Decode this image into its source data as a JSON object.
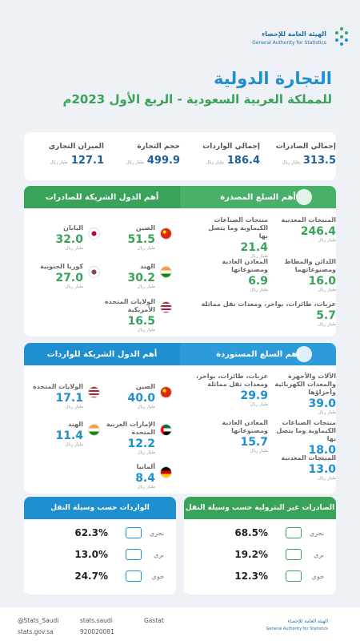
{
  "header": {
    "org_ar": "الهيئة العامة للإحصاء",
    "org_en": "General Authority for Statistics"
  },
  "title": "التجارة الدولية",
  "subtitle": "للمملكة العربية السعودية - الربع الأول 2023م",
  "unit": "مليار ريال",
  "summary": [
    {
      "label": "إجمالي الصادرات",
      "value": "313.5"
    },
    {
      "label": "إجمالي الواردات",
      "value": "186.4"
    },
    {
      "label": "حجم التجارة",
      "value": "499.9"
    },
    {
      "label": "الميزان التجاري",
      "value": "127.1"
    }
  ],
  "exports": {
    "commodities_title": "أهم السلع المصدرة",
    "commodities": [
      {
        "name": "المنتجات المعدنية",
        "value": "246.4"
      },
      {
        "name": "منتجات الصناعات الكيماوية وما يتصل بها",
        "value": "21.4"
      },
      {
        "name": "اللدائن والمطاط ومصنوعاتهما",
        "value": "16.0"
      },
      {
        "name": "المعادن العادية ومصنوعاتها",
        "value": "6.9"
      },
      {
        "name": "عربات، طائرات، بواخر، ومعدات نقل مماثلة",
        "value": "5.7"
      }
    ],
    "partners_title": "أهم الدول الشريكة للصادرات",
    "partners": [
      {
        "name": "الصين",
        "value": "51.5"
      },
      {
        "name": "اليابان",
        "value": "32.0"
      },
      {
        "name": "الهند",
        "value": "30.2"
      },
      {
        "name": "كوريا الجنوبية",
        "value": "27.0"
      },
      {
        "name": "الولايات المتحدة الأمريكية",
        "value": "16.5"
      }
    ]
  },
  "imports": {
    "commodities_title": "أهم السلع المستوردة",
    "commodities": [
      {
        "name": "الآلات والأجهزة والمعدات الكهربائية وأجزاؤها",
        "value": "39.0"
      },
      {
        "name": "عربات، طائرات، بواخر، ومعدات نقل مماثلة",
        "value": "29.9"
      },
      {
        "name": "منتجات الصناعات الكيماوية وما يتصل بها",
        "value": "18.0"
      },
      {
        "name": "المعادن العادية ومصنوعاتها",
        "value": "15.7"
      },
      {
        "name": "المنتجات المعدنية",
        "value": "13.0"
      }
    ],
    "partners_title": "أهم الدول الشريكة للواردات",
    "partners": [
      {
        "name": "الصين",
        "value": "40.0"
      },
      {
        "name": "الولايات المتحدة",
        "value": "17.1"
      },
      {
        "name": "الإمارات العربية المتحدة",
        "value": "12.2"
      },
      {
        "name": "الهند",
        "value": "11.4"
      },
      {
        "name": "ألمانيا",
        "value": "8.4"
      }
    ]
  },
  "transport": {
    "exports_title": "الصادرات غير البترولية حسب وسيلة النقل",
    "exports": [
      {
        "mode": "بحري",
        "share": "68.5%"
      },
      {
        "mode": "بري",
        "share": "19.2%"
      },
      {
        "mode": "جوي",
        "share": "12.3%"
      }
    ],
    "imports_title": "الواردات حسب وسيلة النقل",
    "imports": [
      {
        "mode": "بحري",
        "share": "62.3%"
      },
      {
        "mode": "بري",
        "share": "13.0%"
      },
      {
        "mode": "جوي",
        "share": "24.7%"
      }
    ]
  },
  "footer": {
    "twitter": "@Stats_Saudi",
    "facebook": "stats.saudi",
    "linkedin": "Gastat",
    "website": "stats.gov.sa",
    "phone": "920020081"
  }
}
